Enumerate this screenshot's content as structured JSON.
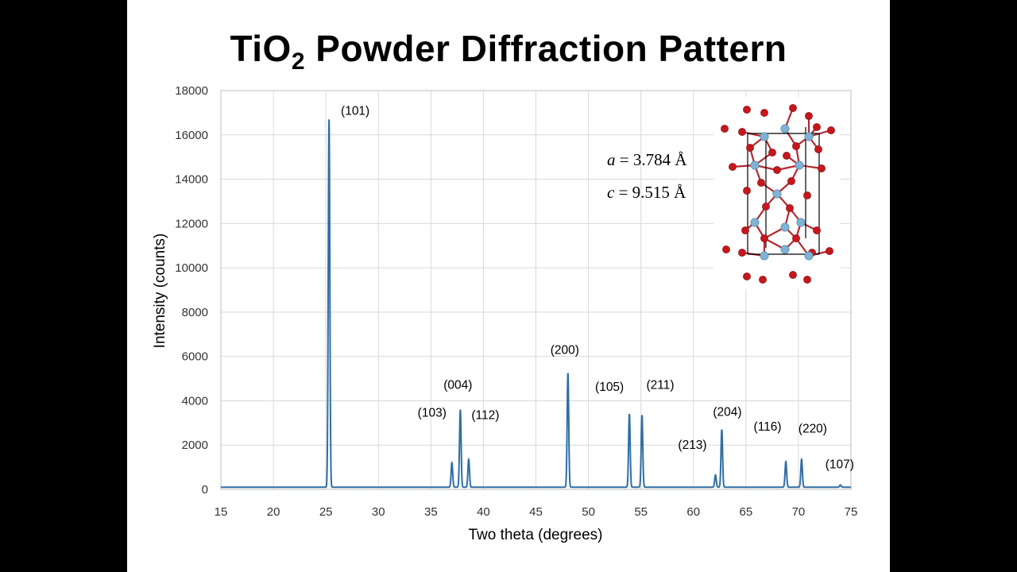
{
  "title": {
    "prefix": "TiO",
    "subscript": "2",
    "suffix": " Powder Diffraction Pattern"
  },
  "lattice_params": [
    {
      "symbol": "a",
      "rest": " = 3.784 Å"
    },
    {
      "symbol": "c",
      "rest": " = 9.515 Å"
    }
  ],
  "crystal_structure": {
    "icon": "anatase-unit-cell-illustration",
    "ti_color": "#7fb3d5",
    "o_color": "#c8161d",
    "cell_edge_color": "#000000"
  },
  "chart_data": {
    "type": "line",
    "xlabel": "Two theta (degrees)",
    "ylabel": "Intensity (counts)",
    "xlim": [
      15,
      75
    ],
    "ylim": [
      0,
      18000
    ],
    "x_ticks": [
      15,
      20,
      25,
      30,
      35,
      40,
      45,
      50,
      55,
      60,
      65,
      70,
      75
    ],
    "y_ticks": [
      0,
      2000,
      4000,
      6000,
      8000,
      10000,
      12000,
      14000,
      16000,
      18000
    ],
    "grid": true,
    "legend": "none",
    "line_color": "#2e6ea6",
    "baseline": 100,
    "peaks": [
      {
        "label": "(101)",
        "x": 25.3,
        "y": 16700
      },
      {
        "label": "(103)",
        "x": 37.0,
        "y": 1200
      },
      {
        "label": "(004)",
        "x": 37.8,
        "y": 3600
      },
      {
        "label": "(112)",
        "x": 38.6,
        "y": 1350
      },
      {
        "label": "(200)",
        "x": 48.05,
        "y": 5250
      },
      {
        "label": "(105)",
        "x": 53.9,
        "y": 3400
      },
      {
        "label": "(211)",
        "x": 55.1,
        "y": 3350
      },
      {
        "label": "(213)",
        "x": 62.1,
        "y": 650
      },
      {
        "label": "(204)",
        "x": 62.7,
        "y": 2700
      },
      {
        "label": "(116)",
        "x": 68.8,
        "y": 1250
      },
      {
        "label": "(220)",
        "x": 70.3,
        "y": 1350
      },
      {
        "label": "(107)",
        "x": 74.0,
        "y": 200
      }
    ]
  }
}
